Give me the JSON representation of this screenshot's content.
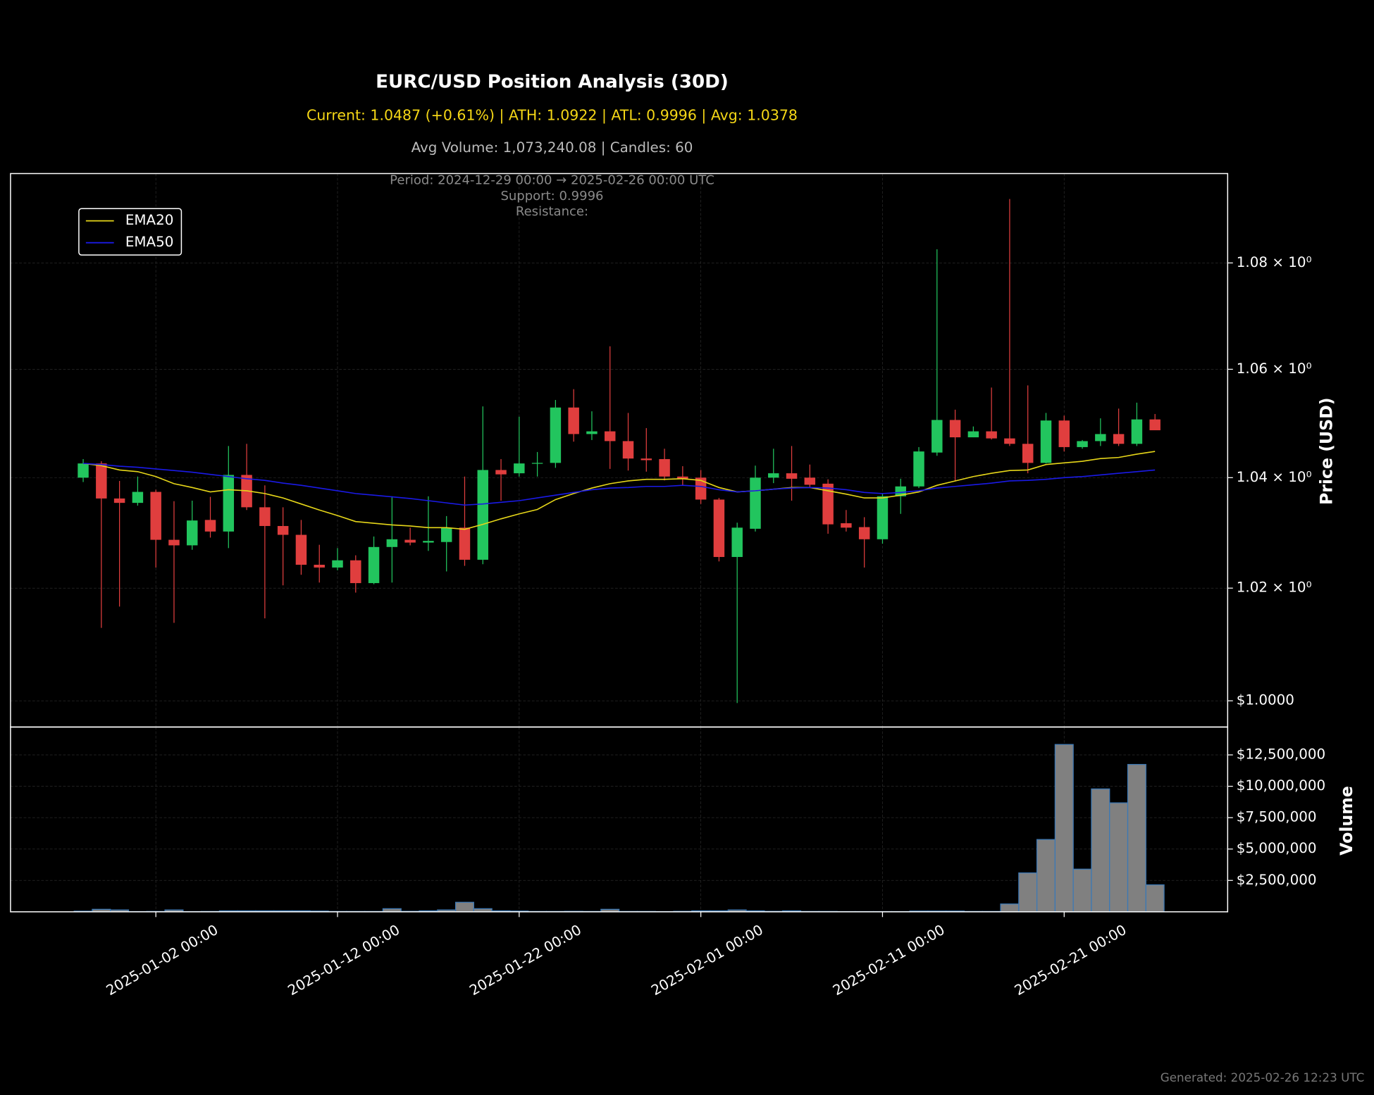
{
  "chart_data": [
    {
      "type": "candlestick",
      "title": "EURC/USD Position Analysis (30D)",
      "subtitle": "Current: 1.0487 (+0.61%) | ATH: 1.0922 | ATL: 0.9996 | Avg: 1.0378",
      "info": "Avg Volume: 1,073,240.08 | Candles: 60",
      "annotations": [
        "Period: 2024-12-29 00:00 → 2025-02-26 00:00 UTC",
        "Support: 0.9996",
        "Resistance:"
      ],
      "ylabel": "Price (USD)",
      "log_scale": true,
      "grid": true,
      "legend": "upper left",
      "up_color": "#22c55e",
      "down_color": "#e03e3e",
      "x": [
        "2024-12-29 00:00",
        "2024-12-30 00:00",
        "2024-12-31 00:00",
        "2025-01-01 00:00",
        "2025-01-02 00:00",
        "2025-01-03 00:00",
        "2025-01-04 00:00",
        "2025-01-05 00:00",
        "2025-01-06 00:00",
        "2025-01-07 00:00",
        "2025-01-08 00:00",
        "2025-01-09 00:00",
        "2025-01-10 00:00",
        "2025-01-11 00:00",
        "2025-01-12 00:00",
        "2025-01-13 00:00",
        "2025-01-14 00:00",
        "2025-01-15 00:00",
        "2025-01-16 00:00",
        "2025-01-17 00:00",
        "2025-01-18 00:00",
        "2025-01-19 00:00",
        "2025-01-20 00:00",
        "2025-01-21 00:00",
        "2025-01-22 00:00",
        "2025-01-23 00:00",
        "2025-01-24 00:00",
        "2025-01-25 00:00",
        "2025-01-26 00:00",
        "2025-01-27 00:00",
        "2025-01-28 00:00",
        "2025-01-29 00:00",
        "2025-01-30 00:00",
        "2025-01-31 00:00",
        "2025-02-01 00:00",
        "2025-02-02 00:00",
        "2025-02-03 00:00",
        "2025-02-04 00:00",
        "2025-02-05 00:00",
        "2025-02-06 00:00",
        "2025-02-07 00:00",
        "2025-02-08 00:00",
        "2025-02-09 00:00",
        "2025-02-10 00:00",
        "2025-02-11 00:00",
        "2025-02-12 00:00",
        "2025-02-13 00:00",
        "2025-02-14 00:00",
        "2025-02-15 00:00",
        "2025-02-16 00:00",
        "2025-02-17 00:00",
        "2025-02-18 00:00",
        "2025-02-19 00:00",
        "2025-02-20 00:00",
        "2025-02-21 00:00",
        "2025-02-22 00:00",
        "2025-02-23 00:00",
        "2025-02-24 00:00",
        "2025-02-25 00:00",
        "2025-02-26 00:00"
      ],
      "open": [
        1.04,
        1.0426,
        1.0362,
        1.0354,
        1.0374,
        1.0287,
        1.0277,
        1.0323,
        1.0302,
        1.0405,
        1.0346,
        1.0312,
        1.0296,
        1.0242,
        1.0237,
        1.025,
        1.0209,
        1.0274,
        1.0287,
        1.0282,
        1.0283,
        1.0309,
        1.0251,
        1.0414,
        1.0408,
        1.0426,
        1.0427,
        1.0529,
        1.048,
        1.0485,
        1.0467,
        1.0435,
        1.0434,
        1.0402,
        1.04,
        1.036,
        1.0256,
        1.0307,
        1.04,
        1.0408,
        1.04,
        1.0389,
        1.0317,
        1.031,
        1.0288,
        1.0366,
        1.0384,
        1.0446,
        1.0506,
        1.0474,
        1.0485,
        1.0472,
        1.0462,
        1.0427,
        1.0505,
        1.0456,
        1.0467,
        1.048,
        1.0462,
        1.0507
      ],
      "high": [
        1.0434,
        1.043,
        1.0394,
        1.0402,
        1.0378,
        1.0357,
        1.0358,
        1.0365,
        1.0458,
        1.0462,
        1.0386,
        1.0346,
        1.0323,
        1.0278,
        1.0272,
        1.0259,
        1.0293,
        1.0366,
        1.0309,
        1.0366,
        1.033,
        1.0402,
        1.0531,
        1.0434,
        1.0512,
        1.0447,
        1.0543,
        1.0563,
        1.0522,
        1.0643,
        1.0519,
        1.0491,
        1.0453,
        1.0421,
        1.0414,
        1.0363,
        1.0318,
        1.0422,
        1.0453,
        1.0458,
        1.0424,
        1.0397,
        1.0341,
        1.0328,
        1.0371,
        1.0398,
        1.0456,
        1.0826,
        1.0525,
        1.0494,
        1.0566,
        1.0922,
        1.057,
        1.0519,
        1.0514,
        1.0469,
        1.0509,
        1.0527,
        1.0538,
        1.0517
      ],
      "low": [
        1.0392,
        1.0129,
        1.0167,
        1.0349,
        1.0237,
        1.0138,
        1.0269,
        1.0291,
        1.0272,
        1.0341,
        1.0146,
        1.0205,
        1.0224,
        1.021,
        1.0232,
        1.0192,
        1.0207,
        1.021,
        1.0277,
        1.0267,
        1.023,
        1.024,
        1.0243,
        1.0358,
        1.0402,
        1.0402,
        1.0418,
        1.0466,
        1.0469,
        1.0416,
        1.0413,
        1.0411,
        1.0395,
        1.0386,
        1.0352,
        1.0248,
        0.9996,
        1.0302,
        1.039,
        1.0358,
        1.0382,
        1.0298,
        1.0302,
        1.0237,
        1.028,
        1.0334,
        1.0381,
        1.044,
        1.0394,
        1.0474,
        1.047,
        1.0458,
        1.0408,
        1.0426,
        1.0448,
        1.0453,
        1.0458,
        1.0458,
        1.0458,
        1.0488
      ],
      "close": [
        1.0426,
        1.0362,
        1.0354,
        1.0374,
        1.0287,
        1.0277,
        1.0322,
        1.0302,
        1.0405,
        1.0346,
        1.0312,
        1.0296,
        1.0242,
        1.0237,
        1.025,
        1.0209,
        1.0274,
        1.0288,
        1.0282,
        1.0285,
        1.0309,
        1.0251,
        1.0414,
        1.0406,
        1.0426,
        1.0427,
        1.0529,
        1.048,
        1.0485,
        1.0467,
        1.0435,
        1.0432,
        1.0402,
        1.0398,
        1.036,
        1.0256,
        1.0309,
        1.04,
        1.0408,
        1.0398,
        1.0387,
        1.0315,
        1.0309,
        1.0288,
        1.0366,
        1.0384,
        1.0448,
        1.0506,
        1.0474,
        1.0485,
        1.0472,
        1.0462,
        1.0427,
        1.0505,
        1.0456,
        1.0467,
        1.048,
        1.0462,
        1.0507,
        1.0487
      ],
      "series": [
        {
          "name": "EMA20",
          "color": "#e6d619",
          "values": [
            1.0426,
            1.0422,
            1.0414,
            1.0411,
            1.0402,
            1.0389,
            1.0382,
            1.0374,
            1.0378,
            1.0376,
            1.0371,
            1.0363,
            1.0352,
            1.0341,
            1.0331,
            1.032,
            1.0317,
            1.0314,
            1.0312,
            1.0309,
            1.0309,
            1.0306,
            1.0315,
            1.0325,
            1.0334,
            1.0342,
            1.036,
            1.0371,
            1.0381,
            1.0389,
            1.0394,
            1.0397,
            1.0397,
            1.0398,
            1.0395,
            1.0382,
            1.0374,
            1.0376,
            1.0379,
            1.0382,
            1.0382,
            1.0376,
            1.037,
            1.0363,
            1.0363,
            1.0368,
            1.0374,
            1.0386,
            1.0394,
            1.0402,
            1.0408,
            1.0413,
            1.0414,
            1.0424,
            1.0427,
            1.043,
            1.0435,
            1.0437,
            1.0443,
            1.0448
          ]
        },
        {
          "name": "EMA50",
          "color": "#1a1ae6",
          "values": [
            1.0426,
            1.0424,
            1.0421,
            1.0419,
            1.0416,
            1.0413,
            1.041,
            1.0406,
            1.0402,
            1.0398,
            1.0395,
            1.039,
            1.0386,
            1.0381,
            1.0376,
            1.0371,
            1.0368,
            1.0365,
            1.0362,
            1.0358,
            1.0354,
            1.035,
            1.0352,
            1.0355,
            1.0358,
            1.0363,
            1.0368,
            1.0373,
            1.0378,
            1.0381,
            1.0382,
            1.0384,
            1.0384,
            1.0386,
            1.0384,
            1.0378,
            1.0374,
            1.0376,
            1.0379,
            1.0381,
            1.0382,
            1.0381,
            1.0378,
            1.0373,
            1.0371,
            1.0373,
            1.0376,
            1.0381,
            1.0384,
            1.0387,
            1.039,
            1.0394,
            1.0395,
            1.0397,
            1.04,
            1.0402,
            1.0405,
            1.0408,
            1.0411,
            1.0414
          ]
        }
      ],
      "xlim": [
        "2024-12-25 00:00",
        "2025-03-02 00:00"
      ],
      "xticks": [
        "2025-01-02 00:00",
        "2025-01-12 00:00",
        "2025-01-22 00:00",
        "2025-02-01 00:00",
        "2025-02-11 00:00",
        "2025-02-21 00:00"
      ],
      "ylim": [
        0.9954,
        1.0971
      ],
      "yticks": [
        {
          "value": 1.0,
          "label": "$1.0000"
        },
        {
          "value": 1.02,
          "label": "1.02 × 10⁰"
        },
        {
          "value": 1.04,
          "label": "1.04 × 10⁰"
        },
        {
          "value": 1.06,
          "label": "1.06 × 10⁰"
        },
        {
          "value": 1.08,
          "label": "1.08 × 10⁰"
        }
      ]
    },
    {
      "type": "bar",
      "ylabel": "Volume",
      "color": "#808080",
      "edgecolor": "#3b78b5",
      "grid": true,
      "values": [
        50000,
        200000,
        150000,
        20000,
        30000,
        150000,
        20000,
        30000,
        80000,
        80000,
        80000,
        80000,
        80000,
        60000,
        30000,
        30000,
        30000,
        250000,
        40000,
        80000,
        150000,
        760000,
        250000,
        80000,
        60000,
        30000,
        30000,
        40000,
        30000,
        200000,
        30000,
        30000,
        20000,
        40000,
        80000,
        80000,
        150000,
        80000,
        40000,
        80000,
        30000,
        30000,
        20000,
        20000,
        20000,
        20000,
        60000,
        60000,
        60000,
        30000,
        30000,
        625000,
        3100000,
        5760000,
        13330000,
        3400000,
        9790000,
        8680000,
        11740000,
        2150000
      ],
      "ylim": [
        0,
        14720000
      ],
      "yticks": [
        {
          "value": 2500000,
          "label": "$2,500,000"
        },
        {
          "value": 5000000,
          "label": "$5,000,000"
        },
        {
          "value": 7500000,
          "label": "$7,500,000"
        },
        {
          "value": 10000000,
          "label": "$10,000,000"
        },
        {
          "value": 12500000,
          "label": "$12,500,000"
        }
      ]
    }
  ],
  "footer": "Generated: 2025-02-26 12:23 UTC"
}
